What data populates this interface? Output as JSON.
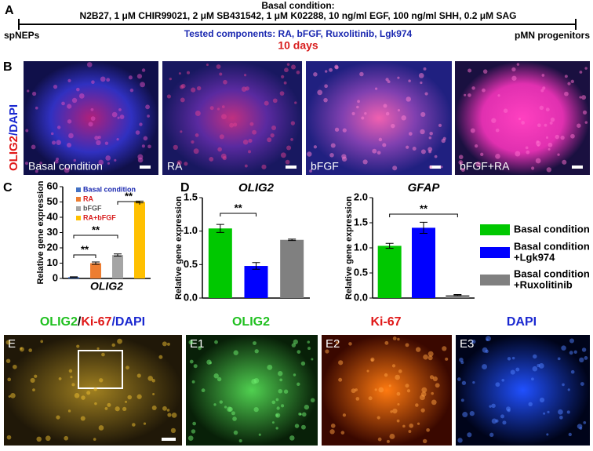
{
  "panel_a": {
    "label": "A",
    "heading": "Basal condition:",
    "components": "N2B27, 1 μM CHIR99021, 2 μM SB431542, 1 μM K02288, 10 ng/ml EGF, 100 ng/ml SHH, 0.2 μM SAG",
    "start": "spNEPs",
    "end": "pMN progenitors",
    "tested": "Tested components: RA, bFGF, Ruxolitinib, Lgk974",
    "duration": "10 days"
  },
  "panel_b": {
    "label": "B",
    "stain_parts": [
      "OLIG2",
      "/DAPI"
    ],
    "images": [
      "Basal condition",
      "RA",
      "bFGF",
      "bFGF+RA"
    ]
  },
  "panel_d": {
    "label": "D",
    "legend": [
      [
        "Basal condition"
      ],
      [
        "Basal condition",
        "+Lgk974"
      ],
      [
        "Basal condition",
        "+Ruxolitinib"
      ]
    ]
  },
  "panel_e": {
    "label": "E",
    "title_parts": [
      "OLIG2",
      "/",
      "Ki-67",
      "/DAPI"
    ],
    "images": [
      "E1",
      "E2",
      "E3"
    ],
    "image_titles": [
      "OLIG2",
      "Ki-67",
      "DAPI"
    ]
  },
  "chart_data": [
    {
      "type": "bar",
      "panel": "C",
      "xlabel": "OLIG2",
      "ylabel": "Relative gene expression",
      "categories": [
        "Basal condition",
        "RA",
        "bFGF",
        "RA+bFGF"
      ],
      "colors": [
        "#4472c4",
        "#ed7d31",
        "#a5a5a5",
        "#ffc000"
      ],
      "values": [
        0.9,
        10,
        15.3,
        50
      ],
      "errors": [
        0.2,
        0.8,
        0.7,
        0.6
      ],
      "ylim": [
        0,
        60
      ],
      "yticks": [
        0,
        10,
        20,
        30,
        40,
        50,
        60
      ],
      "annotations": [
        "**",
        "**",
        "**"
      ]
    },
    {
      "type": "bar",
      "title": "OLIG2",
      "ylabel": "Relative gene expression",
      "colors": [
        "#00c800",
        "#0000ff",
        "#808080"
      ],
      "values": [
        1.04,
        0.48,
        0.87
      ],
      "errors": [
        0.06,
        0.05,
        0.01
      ],
      "ylim": [
        0,
        1.5
      ],
      "yticks": [
        {
          "value": 0,
          "label": "0.0"
        },
        0.5,
        {
          "value": 1,
          "label": "1.0"
        },
        1.5
      ],
      "annotations": [
        "**"
      ]
    },
    {
      "type": "bar",
      "title": "GFAP",
      "ylabel": "Relative gene expression",
      "colors": [
        "#00c800",
        "#0000ff",
        "#808080"
      ],
      "values": [
        1.04,
        1.4,
        0.06
      ],
      "errors": [
        0.05,
        0.11,
        0.01
      ],
      "ylim": [
        0,
        2
      ],
      "yticks": [
        {
          "value": 0,
          "label": "0.0"
        },
        0.5,
        {
          "value": 1,
          "label": "1.0"
        },
        1.5,
        {
          "value": 2,
          "label": "2.0"
        }
      ],
      "annotations": [
        "**"
      ]
    }
  ]
}
